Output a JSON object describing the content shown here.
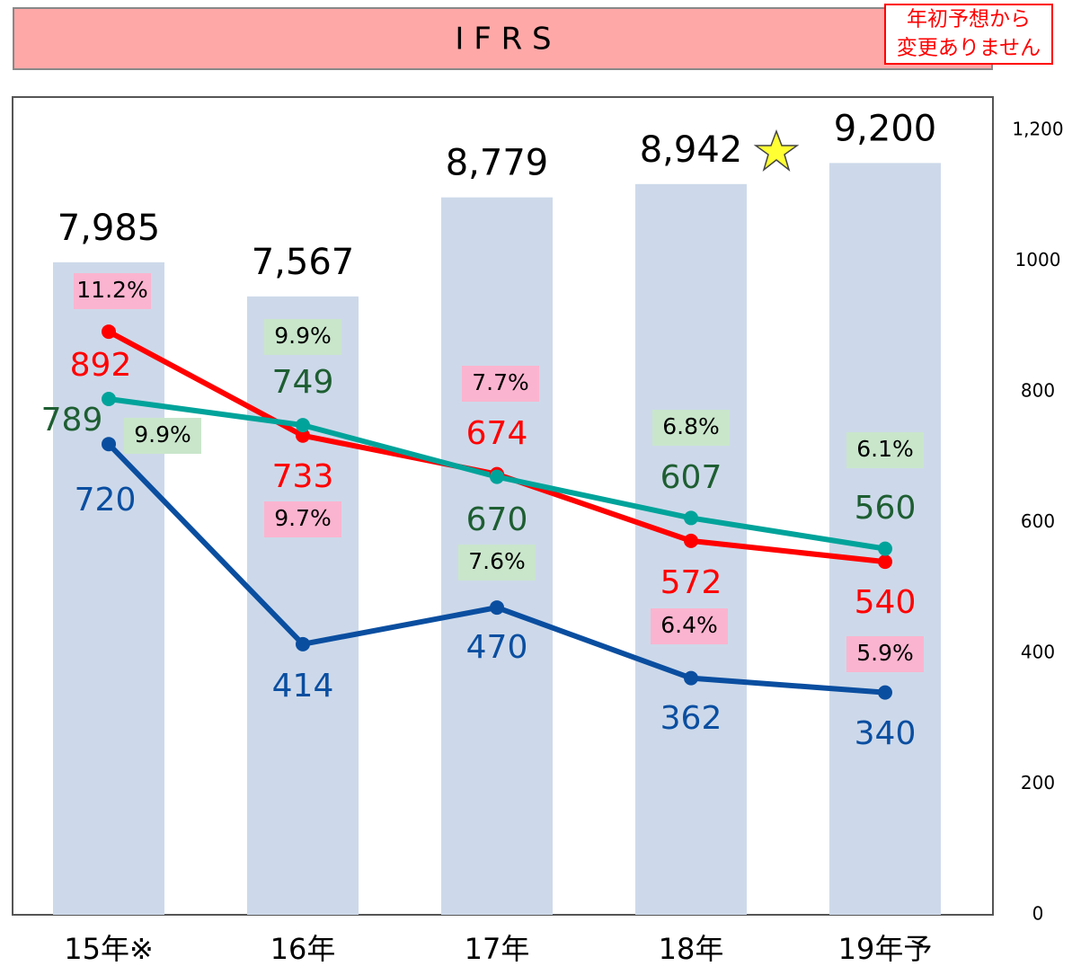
{
  "header": {
    "title": "I F R S",
    "note": [
      "年初予想から",
      "変更ありません"
    ]
  },
  "chart_data": {
    "type": "bar-line",
    "categories": [
      "15年※",
      "16年",
      "17年",
      "18年",
      "19年予"
    ],
    "bars": {
      "color": "#cdd9ea",
      "values": [
        7985,
        7567,
        8779,
        8942,
        9200
      ],
      "value_labels": [
        "7,985",
        "7,567",
        "8,779",
        "8,942",
        "9,200"
      ]
    },
    "ylim": [
      0,
      9600
    ],
    "y2lim": [
      0,
      1200
    ],
    "y2ticks": [
      0,
      200,
      400,
      600,
      800,
      1000,
      {
        "value": 1200,
        "label": "1,200"
      }
    ],
    "series": [
      {
        "color": "#ff0000",
        "axis": "y2",
        "values": [
          892,
          733,
          674,
          572,
          540
        ],
        "ratio_labels": [
          "11.2%",
          "9.7%",
          "7.7%",
          "6.4%",
          "5.9%"
        ]
      },
      {
        "color": "#00a39a",
        "axis": "y2",
        "values": [
          789,
          749,
          670,
          607,
          560
        ],
        "ratio_labels": [
          "9.9%",
          "9.9%",
          "7.6%",
          "6.8%",
          "6.1%"
        ]
      },
      {
        "color": "#0a4ea0",
        "axis": "y2",
        "values": [
          720,
          414,
          470,
          362,
          340
        ],
        "ratio_labels": null
      }
    ]
  }
}
